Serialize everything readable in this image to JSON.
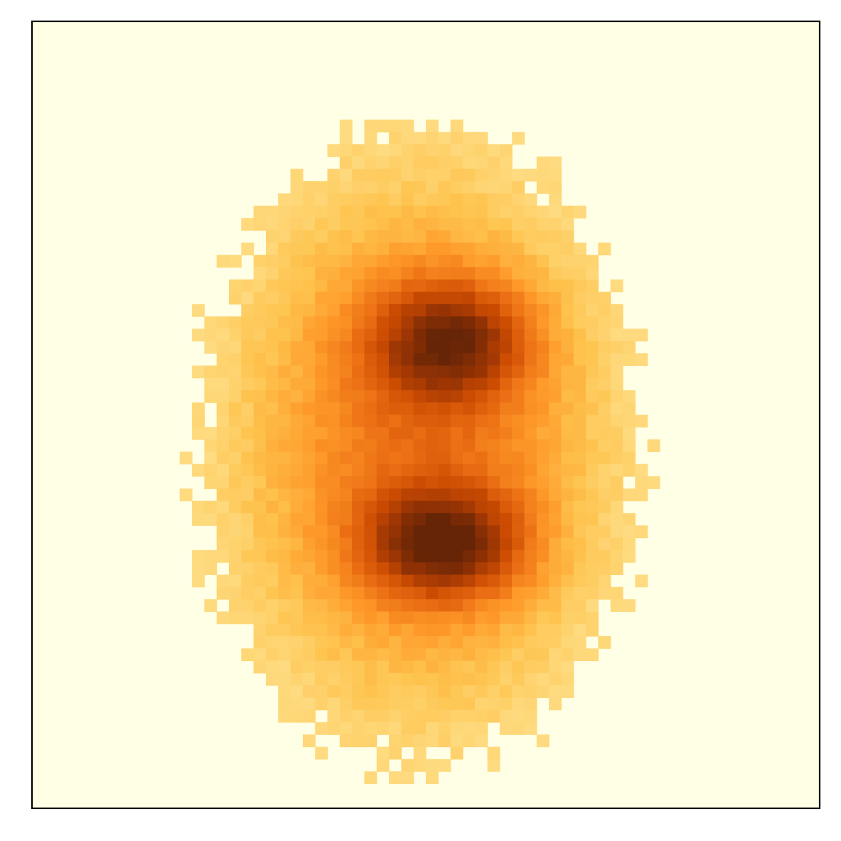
{
  "chart_data": {
    "type": "heatmap",
    "title": "",
    "xlabel": "",
    "ylabel": "",
    "grid": false,
    "ticks": "none",
    "colormap": "YlOrBr",
    "colorscale": [
      "#ffffe5",
      "#fff7bc",
      "#fee391",
      "#fec44f",
      "#fe9929",
      "#ec7014",
      "#cc4c02",
      "#993404",
      "#662506"
    ],
    "background_value": 0,
    "value_range": [
      0,
      1
    ],
    "grid_size": [
      64,
      64
    ],
    "blobs": [
      {
        "cx": 33.5,
        "cy": 25.5,
        "sx": 4.5,
        "sy": 3.5,
        "amp": 0.55
      },
      {
        "cx": 33.0,
        "cy": 42.0,
        "sx": 4.5,
        "sy": 3.2,
        "amp": 0.6
      },
      {
        "cx": 31.0,
        "cy": 34.0,
        "sx": 11.0,
        "sy": 16.0,
        "amp": 0.5
      }
    ],
    "threshold": 0.13
  }
}
